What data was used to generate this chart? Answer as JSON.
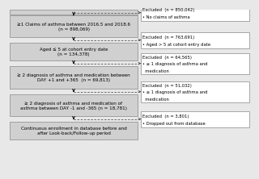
{
  "boxes_left": [
    "≥1 Claims of asthma between 2016.5 and 2018.6\n(n = 898,069)",
    "Aged ≤ 5 at cohort entry date\n(n = 134,378)",
    "≥ 2 diagnosis of asthma and medication between\nDAY +1 and +365  (n = 69,813)",
    "≥ 2 diagnosis of asthma and medication of\nasthma between DAY -1 and -365 (n = 18,781)",
    "Continuous enrollment in database before and\nafter Look-back/Follow-up period"
  ],
  "boxes_right": [
    "Excluded  (n = 850,042)\n• No claims of asthma",
    "Excluded  (n = 763,691)\n• Aged > 5 at cohort entry date",
    "Excluded  (n = 64,565)\n• ≤ 1 diagnosis of asthma and\n  medication",
    "Excluded  (n = 51,032)\n• ≤ 1 diagnosis of asthma and\n  medication",
    "Excluded  (n = 3,801)\n• Dropped out from database"
  ],
  "bg_color": "#e8e8e8",
  "left_box_color": "#d0d0d0",
  "right_box_color": "#ffffff",
  "border_color": "#888888",
  "text_color": "#000000"
}
